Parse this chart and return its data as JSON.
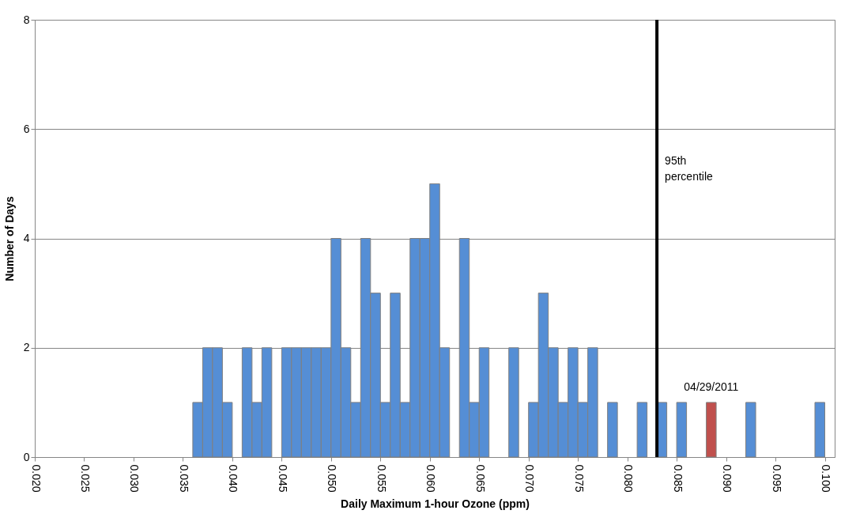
{
  "chart_data": {
    "type": "histogram",
    "xlabel": "Daily Maximum 1-hour Ozone (ppm)",
    "ylabel": "Number of Days",
    "bins": [
      0.02,
      0.021,
      0.022,
      0.023,
      0.024,
      0.025,
      0.026,
      0.027,
      0.028,
      0.029,
      0.03,
      0.031,
      0.032,
      0.033,
      0.034,
      0.035,
      0.036,
      0.037,
      0.038,
      0.039,
      0.04,
      0.041,
      0.042,
      0.043,
      0.044,
      0.045,
      0.046,
      0.047,
      0.048,
      0.049,
      0.05,
      0.051,
      0.052,
      0.053,
      0.054,
      0.055,
      0.056,
      0.057,
      0.058,
      0.059,
      0.06,
      0.061,
      0.062,
      0.063,
      0.064,
      0.065,
      0.066,
      0.067,
      0.068,
      0.069,
      0.07,
      0.071,
      0.072,
      0.073,
      0.074,
      0.075,
      0.076,
      0.077,
      0.078,
      0.079,
      0.08,
      0.081,
      0.082,
      0.083,
      0.084,
      0.085,
      0.086,
      0.087,
      0.088,
      0.089,
      0.09,
      0.091,
      0.092,
      0.093,
      0.094,
      0.095,
      0.096,
      0.097,
      0.098,
      0.099,
      0.1,
      0.101
    ],
    "values": [
      0,
      0,
      0,
      0,
      0,
      0,
      0,
      0,
      0,
      0,
      0,
      0,
      0,
      0,
      0,
      0,
      1,
      2,
      2,
      1,
      0,
      2,
      1,
      2,
      0,
      2,
      2,
      2,
      2,
      2,
      4,
      2,
      1,
      4,
      3,
      1,
      3,
      1,
      4,
      4,
      5,
      2,
      0,
      4,
      1,
      2,
      0,
      0,
      2,
      0,
      1,
      3,
      2,
      1,
      2,
      1,
      2,
      0,
      1,
      0,
      0,
      1,
      0,
      1,
      0,
      1,
      0,
      0,
      1,
      0,
      0,
      0,
      1,
      0,
      0,
      0,
      0,
      0,
      0,
      1,
      0
    ],
    "colors": [
      "#558ed5",
      "#558ed5",
      "#558ed5",
      "#558ed5",
      "#558ed5",
      "#558ed5",
      "#558ed5",
      "#558ed5",
      "#558ed5",
      "#558ed5",
      "#558ed5",
      "#558ed5",
      "#558ed5",
      "#558ed5",
      "#558ed5",
      "#558ed5",
      "#558ed5",
      "#558ed5",
      "#558ed5",
      "#558ed5",
      "#558ed5",
      "#558ed5",
      "#558ed5",
      "#558ed5",
      "#558ed5",
      "#558ed5",
      "#558ed5",
      "#558ed5",
      "#558ed5",
      "#558ed5",
      "#558ed5",
      "#558ed5",
      "#558ed5",
      "#558ed5",
      "#558ed5",
      "#558ed5",
      "#558ed5",
      "#558ed5",
      "#558ed5",
      "#558ed5",
      "#558ed5",
      "#558ed5",
      "#558ed5",
      "#558ed5",
      "#558ed5",
      "#558ed5",
      "#558ed5",
      "#558ed5",
      "#558ed5",
      "#558ed5",
      "#558ed5",
      "#558ed5",
      "#558ed5",
      "#558ed5",
      "#558ed5",
      "#558ed5",
      "#558ed5",
      "#558ed5",
      "#558ed5",
      "#558ed5",
      "#558ed5",
      "#558ed5",
      "#558ed5",
      "#558ed5",
      "#558ed5",
      "#558ed5",
      "#558ed5",
      "#558ed5",
      "#c0504d",
      "#558ed5",
      "#558ed5",
      "#558ed5",
      "#558ed5",
      "#558ed5",
      "#558ed5",
      "#558ed5",
      "#558ed5",
      "#558ed5",
      "#558ed5",
      "#558ed5",
      "#558ed5"
    ],
    "xlim": [
      0.02,
      0.101
    ],
    "xticks": [
      {
        "value": 0.02,
        "label": "0.020"
      },
      {
        "value": 0.025,
        "label": "0.025"
      },
      {
        "value": 0.03,
        "label": "0.030"
      },
      {
        "value": 0.035,
        "label": "0.035"
      },
      {
        "value": 0.04,
        "label": "0.040"
      },
      {
        "value": 0.045,
        "label": "0.045"
      },
      {
        "value": 0.05,
        "label": "0.050"
      },
      {
        "value": 0.055,
        "label": "0.055"
      },
      {
        "value": 0.06,
        "label": "0.060"
      },
      {
        "value": 0.065,
        "label": "0.065"
      },
      {
        "value": 0.07,
        "label": "0.070"
      },
      {
        "value": 0.075,
        "label": "0.075"
      },
      {
        "value": 0.08,
        "label": "0.080"
      },
      {
        "value": 0.085,
        "label": "0.085"
      },
      {
        "value": 0.09,
        "label": "0.090"
      },
      {
        "value": 0.095,
        "label": "0.095"
      },
      {
        "value": 0.1,
        "label": "0.100"
      }
    ],
    "ylim": [
      0,
      8
    ],
    "yticks": [
      0,
      2,
      4,
      6,
      8
    ],
    "grid": "y",
    "ref_lines": [
      {
        "axis": "x",
        "value": 0.083,
        "label": "95th percentile",
        "color": "#000000"
      }
    ],
    "annotations": [
      {
        "text": "04/29/2011",
        "x": 0.0885,
        "y": 1
      }
    ]
  }
}
